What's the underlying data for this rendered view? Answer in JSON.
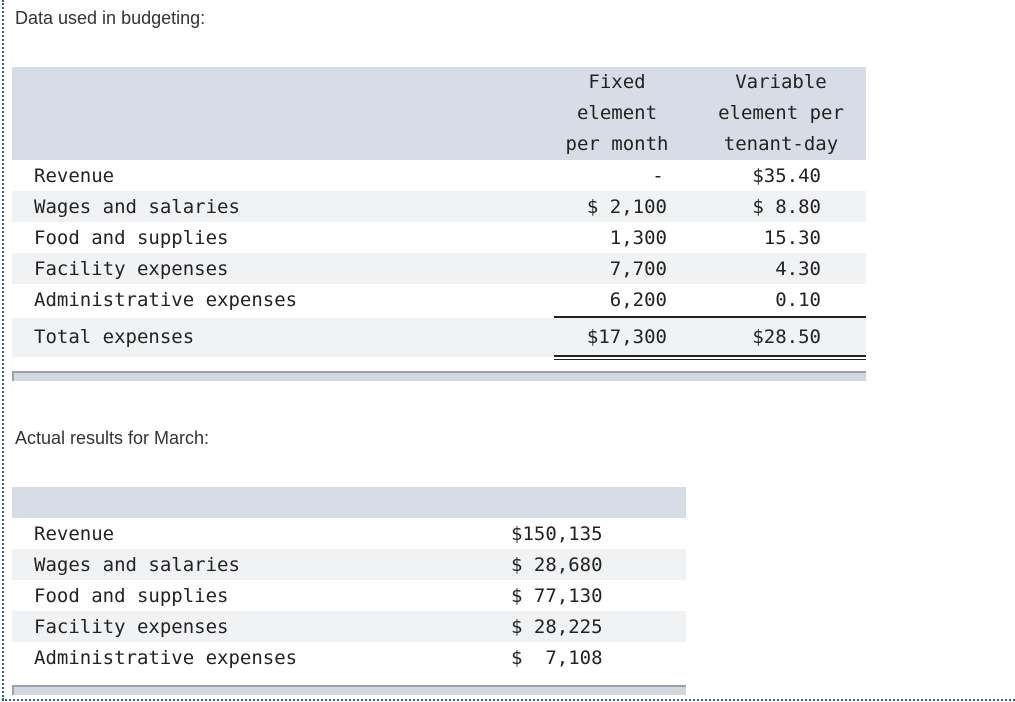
{
  "budget": {
    "title": "Data used in budgeting:",
    "table": {
      "header": [
        [
          "Fixed",
          "element",
          "per month"
        ],
        [
          "Variable",
          "element per",
          "tenant-day"
        ]
      ],
      "rows": [
        [
          "Revenue",
          "-",
          "$35.40"
        ],
        [
          "Wages and salaries",
          "$ 2,100",
          "$ 8.80"
        ],
        [
          "Food and supplies",
          "1,300",
          "15.30"
        ],
        [
          "Facility expenses",
          "7,700",
          "4.30"
        ],
        [
          "Administrative expenses",
          "6,200",
          "0.10"
        ]
      ],
      "total": [
        "Total expenses",
        "$17,300",
        "$28.50"
      ]
    }
  },
  "actual": {
    "title": "Actual results for March:",
    "table": {
      "rows": [
        [
          "Revenue",
          "$150,135"
        ],
        [
          "Wages and salaries",
          "$ 28,680"
        ],
        [
          "Food and supplies",
          "$ 77,130"
        ],
        [
          "Facility expenses",
          "$ 28,225"
        ],
        [
          "Administrative expenses",
          "$  7,108"
        ]
      ]
    }
  }
}
